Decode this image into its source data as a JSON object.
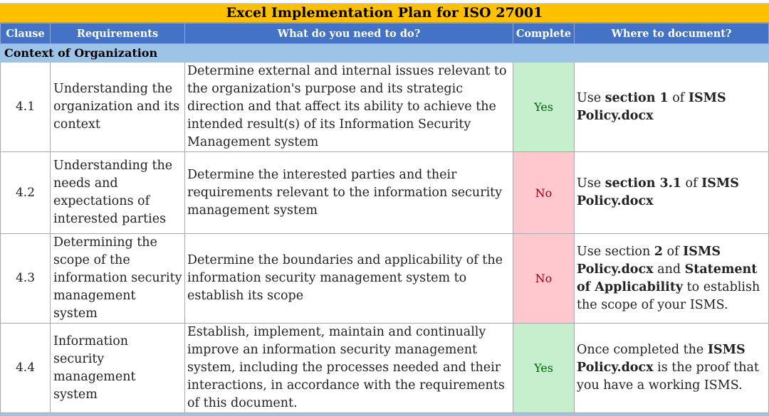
{
  "title": "Excel Implementation Plan for ISO 27001",
  "headers": {
    "clause": "Clause",
    "requirements": "Requirements",
    "what": "What do you need to do?",
    "complete": "Complete",
    "where": "Where to document?"
  },
  "section": "Context of Organization",
  "rows": [
    {
      "clause": "4.1",
      "requirement": "Understanding the organization and its context",
      "what": "Determine external and internal issues relevant to the organization's purpose and its strategic direction and that affect its ability to achieve the intended result(s) of its Information Security Management system",
      "complete": "Yes",
      "where": {
        "p1": "Use ",
        "b1": "section 1",
        "p2": " of ",
        "b2": "ISMS Policy.docx",
        "p3": "",
        "b3": "",
        "p4": ""
      }
    },
    {
      "clause": "4.2",
      "requirement": "Understanding the needs and expectations of interested parties",
      "what": "Determine the interested parties and their requirements relevant to the information security management system",
      "complete": "No",
      "where": {
        "p1": "Use ",
        "b1": "section 3.1",
        "p2": " of ",
        "b2": "ISMS Policy.docx",
        "p3": "",
        "b3": "",
        "p4": ""
      }
    },
    {
      "clause": "4.3",
      "requirement": "Determining the scope of the information security management system",
      "what": "Determine the boundaries and applicability of the information security management system to establish its scope",
      "complete": "No",
      "where": {
        "p1": "Use section ",
        "b1": "2",
        "p2": " of ",
        "b2": "ISMS Policy.docx",
        "p3": " and ",
        "b3": "Statement of Applicability",
        "p4": " to establish the scope of your ISMS."
      }
    },
    {
      "clause": "4.4",
      "requirement": "Information security management system",
      "what": "Establish, implement, maintain and continually improve an information security management system, including the processes needed and their interactions, in accordance with the requirements of this document.",
      "complete": "Yes",
      "where": {
        "p1": "Once completed the ",
        "b1": "ISMS Policy.docx",
        "p2": " is the proof that you have a working ISMS.",
        "b2": "",
        "p3": "",
        "b3": "",
        "p4": ""
      }
    }
  ],
  "colors": {
    "title_bg": "#ffc000",
    "header_bg": "#4472c4",
    "section_bg": "#9dc3e6",
    "yes_bg": "#c6efce",
    "yes_text": "#006100",
    "no_bg": "#ffc7ce",
    "no_text": "#9c0006"
  }
}
